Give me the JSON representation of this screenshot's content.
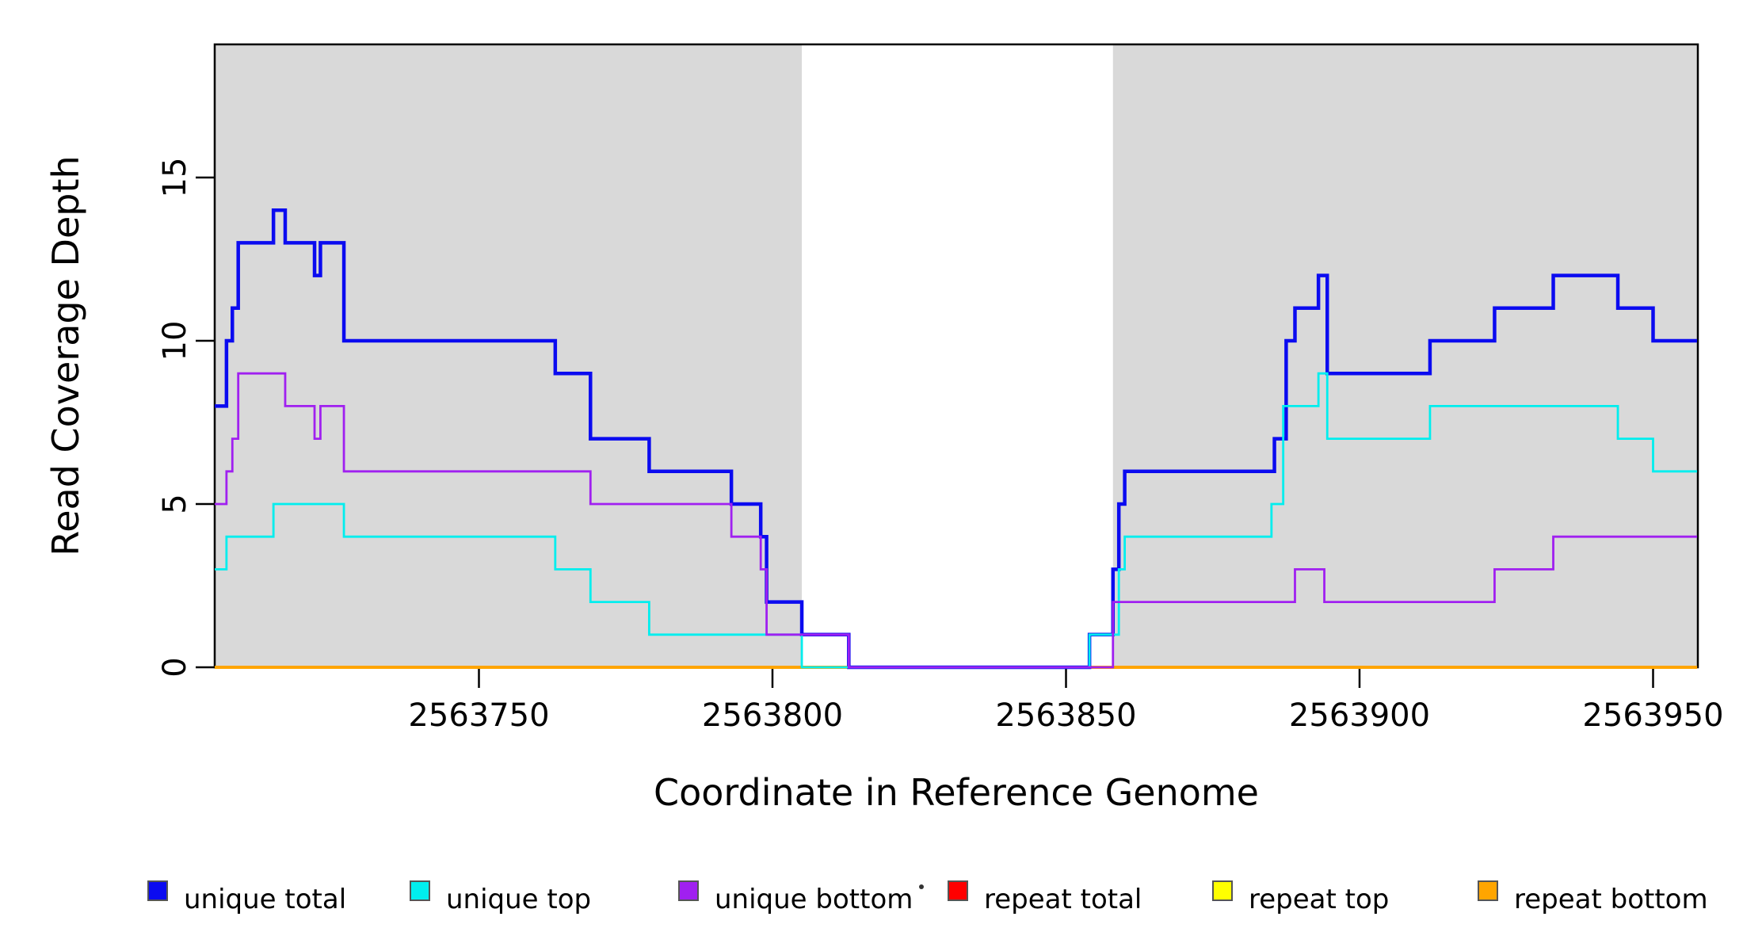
{
  "figure": {
    "background": "#ffffff",
    "band_color": "#d9d9d9",
    "frame_color": "#000000"
  },
  "axes": {
    "x_title": "Coordinate in Reference Genome",
    "y_title": "Read Coverage Depth"
  },
  "chart_data": {
    "type": "line",
    "subtype": "step-coverage",
    "title": "",
    "xlabel": "Coordinate in Reference Genome",
    "ylabel": "Read Coverage Depth",
    "xlim": [
      2563705,
      2563957.5
    ],
    "ylim": [
      0,
      19.1
    ],
    "x_tick_values": [
      2563750,
      2563800,
      2563850,
      2563900,
      2563950
    ],
    "x_tick_labels": [
      "2563750",
      "2563800",
      "2563850",
      "2563900",
      "2563950"
    ],
    "y_tick_values": [
      0,
      5,
      10,
      15
    ],
    "y_tick_labels": [
      "0",
      "5",
      "10",
      "15"
    ],
    "grid": false,
    "shaded_x_ranges": [
      [
        2563705,
        2563805
      ],
      [
        2563858,
        2563957.5
      ]
    ],
    "x_end": 2563957.5,
    "draw_order_note": "series drawn in array order; repeats first so unique lines sit on top at depth 0",
    "series": [
      {
        "name": "repeat total",
        "color": "#ff0000",
        "width": 2.5,
        "steps": [
          [
            2563705,
            0
          ]
        ]
      },
      {
        "name": "repeat top",
        "color": "#ffff00",
        "width": 2.5,
        "steps": [
          [
            2563705,
            0
          ]
        ]
      },
      {
        "name": "repeat bottom",
        "color": "#ffa500",
        "width": 4,
        "steps": [
          [
            2563705,
            0
          ]
        ]
      },
      {
        "name": "unique total",
        "color": "#0b0bf0",
        "width": 4.5,
        "steps": [
          [
            2563705,
            8
          ],
          [
            2563707,
            10
          ],
          [
            2563708,
            11
          ],
          [
            2563709,
            13
          ],
          [
            2563715,
            14
          ],
          [
            2563717,
            13
          ],
          [
            2563722,
            12
          ],
          [
            2563723,
            13
          ],
          [
            2563727,
            10
          ],
          [
            2563763,
            9
          ],
          [
            2563769,
            7
          ],
          [
            2563779,
            6
          ],
          [
            2563793,
            5
          ],
          [
            2563798,
            4
          ],
          [
            2563799,
            2
          ],
          [
            2563805,
            1
          ],
          [
            2563813,
            0
          ],
          [
            2563854,
            1
          ],
          [
            2563858,
            3
          ],
          [
            2563859,
            5
          ],
          [
            2563860,
            6
          ],
          [
            2563885.5,
            7
          ],
          [
            2563887.5,
            10
          ],
          [
            2563889,
            11
          ],
          [
            2563893,
            12
          ],
          [
            2563894.5,
            9
          ],
          [
            2563912,
            10
          ],
          [
            2563923,
            11
          ],
          [
            2563933,
            12
          ],
          [
            2563944,
            11
          ],
          [
            2563950,
            10
          ]
        ]
      },
      {
        "name": "unique top",
        "color": "#00eeee",
        "width": 2.8,
        "steps": [
          [
            2563705,
            3
          ],
          [
            2563707,
            4
          ],
          [
            2563715,
            5
          ],
          [
            2563727,
            4
          ],
          [
            2563763,
            3
          ],
          [
            2563769,
            2
          ],
          [
            2563779,
            1
          ],
          [
            2563805,
            0
          ],
          [
            2563854,
            1
          ],
          [
            2563859,
            3
          ],
          [
            2563860,
            4
          ],
          [
            2563885,
            5
          ],
          [
            2563887,
            8
          ],
          [
            2563893,
            9
          ],
          [
            2563894.5,
            7
          ],
          [
            2563912,
            8
          ],
          [
            2563944,
            7
          ],
          [
            2563950,
            6
          ]
        ]
      },
      {
        "name": "unique bottom",
        "color": "#a020f0",
        "width": 2.8,
        "steps": [
          [
            2563705,
            5
          ],
          [
            2563707,
            6
          ],
          [
            2563708,
            7
          ],
          [
            2563709,
            9
          ],
          [
            2563717,
            8
          ],
          [
            2563722,
            7
          ],
          [
            2563723,
            8
          ],
          [
            2563727,
            6
          ],
          [
            2563769,
            5
          ],
          [
            2563793,
            4
          ],
          [
            2563798,
            3
          ],
          [
            2563799,
            1
          ],
          [
            2563813,
            0
          ],
          [
            2563858,
            2
          ],
          [
            2563889,
            3
          ],
          [
            2563894,
            2
          ],
          [
            2563923,
            3
          ],
          [
            2563933,
            4
          ]
        ]
      }
    ]
  },
  "legend": {
    "items": [
      {
        "label": "unique total",
        "color": "#0b0bf0"
      },
      {
        "label": "unique top",
        "color": "#00eeee"
      },
      {
        "label": "unique bottom",
        "color": "#a020f0"
      },
      {
        "label": "repeat total",
        "color": "#ff0000"
      },
      {
        "label": "repeat top",
        "color": "#ffff00"
      },
      {
        "label": "repeat bottom",
        "color": "#ffa500"
      }
    ],
    "artifact_dot": "·"
  }
}
